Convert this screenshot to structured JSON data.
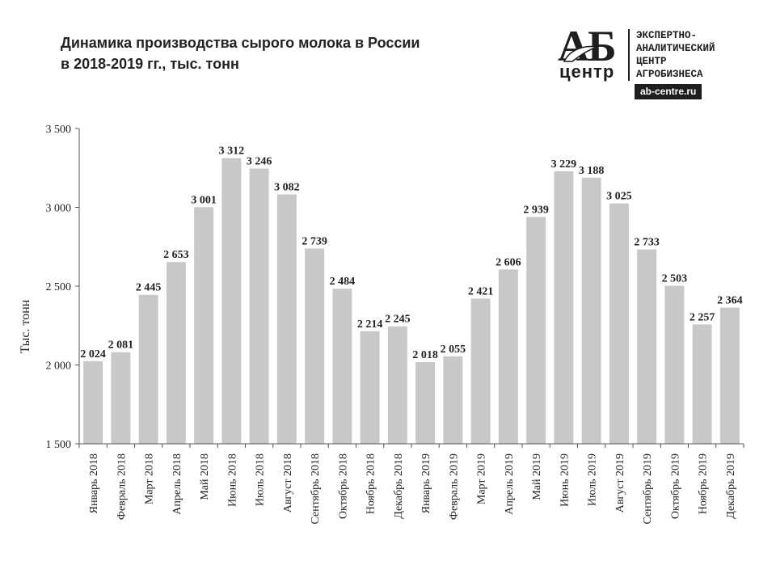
{
  "title": {
    "line1": "Динамика производства сырого молока в России",
    "line2": "в 2018-2019 гг., тыс. тонн"
  },
  "logo": {
    "mark": "АБ",
    "sub": "центр",
    "text": "ЭКСПЕРТНО-\nАНАЛИТИЧЕСКИЙ\nЦЕНТР\nАГРОБИЗНЕСА",
    "site": "ab-centre.ru",
    "icon": "leaf-icon"
  },
  "chart_data": {
    "type": "bar",
    "title": "Динамика производства сырого молока в России в 2018-2019 гг., тыс. тонн",
    "xlabel": "",
    "ylabel": "Тыс. тонн",
    "ylim": [
      1500,
      3500
    ],
    "yticks": [
      1500,
      2000,
      2500,
      3000,
      3500
    ],
    "ytick_labels": [
      "1 500",
      "2 000",
      "2 500",
      "3 000",
      "3 500"
    ],
    "grid": false,
    "legend": "none",
    "bar_color": "#c8c8c8",
    "categories": [
      "Январь 2018",
      "Февраль 2018",
      "Март 2018",
      "Апрель 2018",
      "Май 2018",
      "Июнь 2018",
      "Июль 2018",
      "Август 2018",
      "Сентябрь 2018",
      "Октябрь 2018",
      "Ноябрь 2018",
      "Декабрь 2018",
      "Январь 2019",
      "Февраль 2019",
      "Март 2019",
      "Апрель 2019",
      "Май 2019",
      "Июнь 2019",
      "Июль 2019",
      "Август 2019",
      "Сентябрь 2019",
      "Октябрь 2019",
      "Ноябрь 2019",
      "Декабрь 2019"
    ],
    "values": [
      2024,
      2081,
      2445,
      2653,
      3001,
      3312,
      3246,
      3082,
      2739,
      2484,
      2214,
      2245,
      2018,
      2055,
      2421,
      2606,
      2939,
      3229,
      3188,
      3025,
      2733,
      2503,
      2257,
      2364
    ],
    "value_labels": [
      "2 024",
      "2 081",
      "2 445",
      "2 653",
      "3 001",
      "3 312",
      "3 246",
      "3 082",
      "2 739",
      "2 484",
      "2 214",
      "2 245",
      "2 018",
      "2 055",
      "2 421",
      "2 606",
      "2 939",
      "3 229",
      "3 188",
      "3 025",
      "2 733",
      "2 503",
      "2 257",
      "2 364"
    ]
  }
}
